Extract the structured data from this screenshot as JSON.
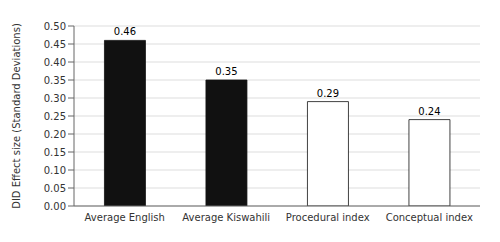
{
  "chart_data": {
    "type": "bar",
    "categories": [
      "Average English",
      "Average Kiswahili",
      "Procedural index",
      "Conceptual index"
    ],
    "values": [
      0.46,
      0.35,
      0.29,
      0.24
    ],
    "colors": [
      "#111111",
      "#111111",
      "white",
      "white"
    ],
    "ylabel": "DID Effect size (Standard Deviations)",
    "ylim": [
      0.0,
      0.5
    ],
    "yticks": [
      {
        "value": 0,
        "label": "0.00"
      },
      0.05,
      {
        "value": 0.1,
        "label": "0.10"
      },
      0.15,
      {
        "value": 0.2,
        "label": "0.20"
      },
      0.25,
      {
        "value": 0.3,
        "label": "0.30"
      },
      0.35,
      {
        "value": 0.4,
        "label": "0.40"
      },
      0.45,
      {
        "value": 0.5,
        "label": "0.50"
      }
    ],
    "grid": true,
    "data_labels": true
  }
}
